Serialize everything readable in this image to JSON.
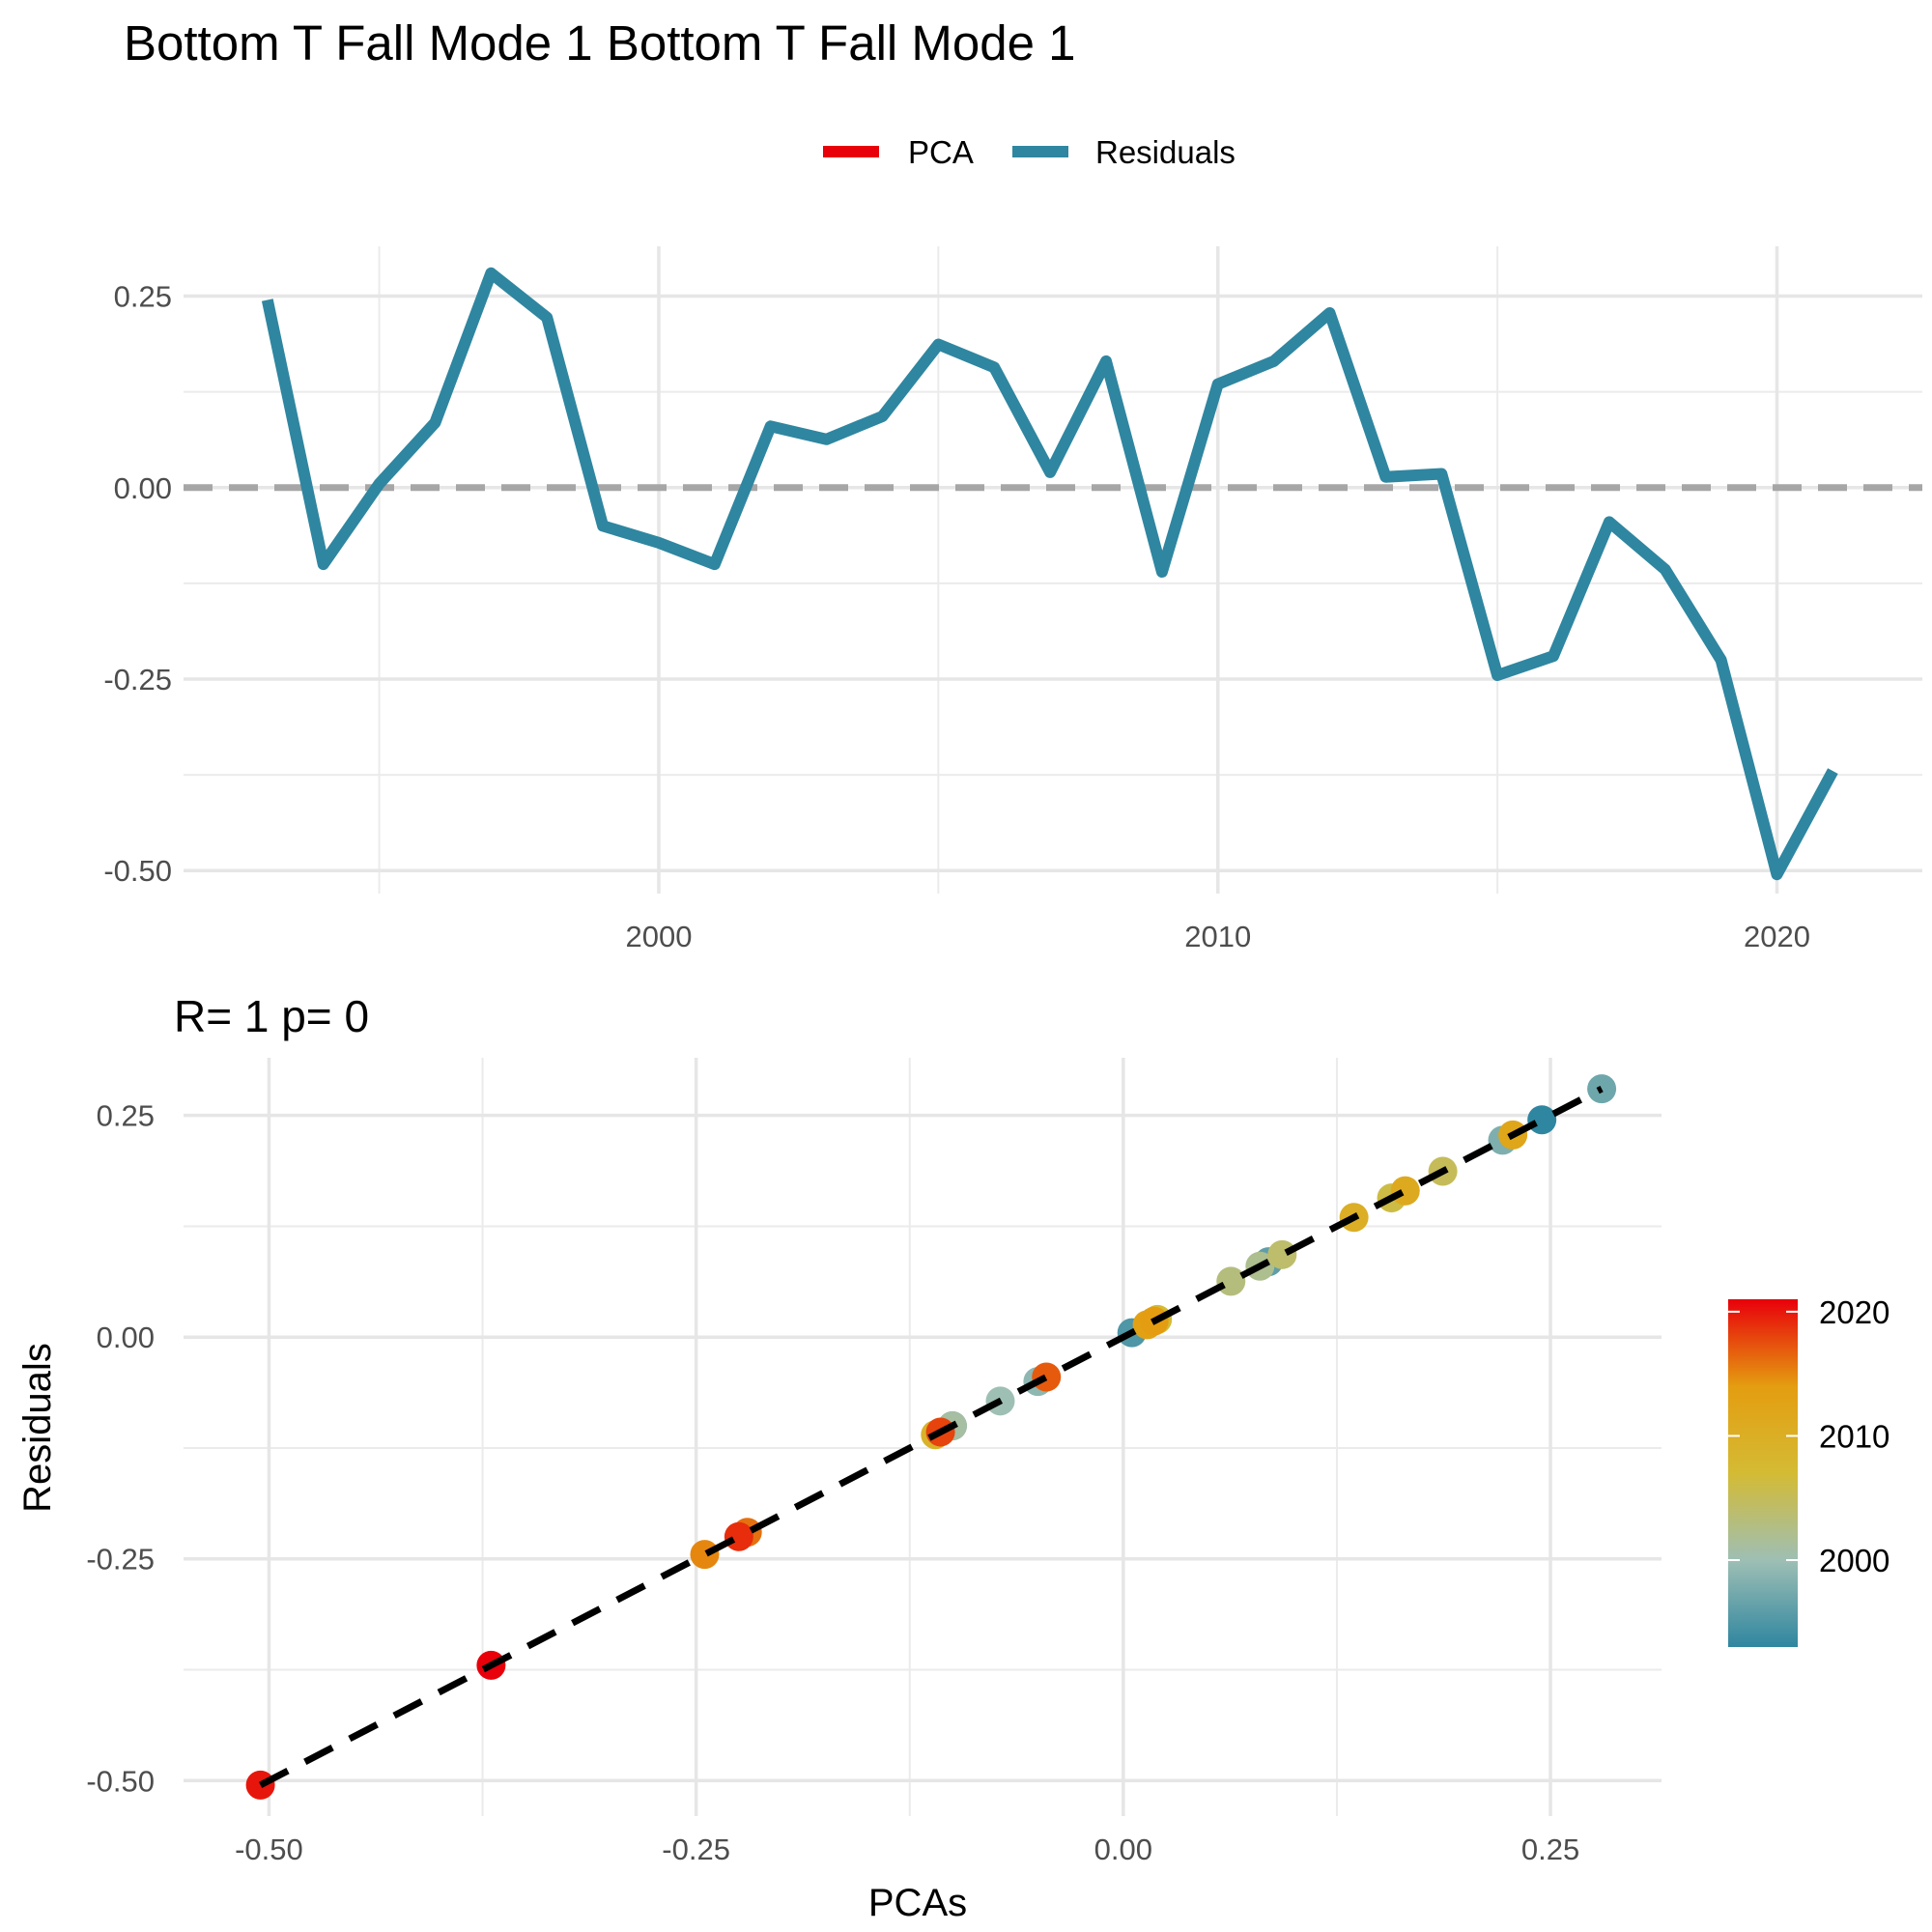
{
  "chart_data": [
    {
      "type": "line",
      "title": "Bottom T Fall Mode 1 Bottom T Fall Mode 1",
      "legend": {
        "position": "top",
        "entries": [
          {
            "name": "PCA",
            "color": "#e8000b"
          },
          {
            "name": "Residuals",
            "color": "#2f86a0"
          }
        ]
      },
      "x_ticks": [
        2000,
        2010,
        2020
      ],
      "y_ticks": [
        0.25,
        0.0,
        -0.25,
        -0.5
      ],
      "y_tick_labels": [
        "0.25",
        "0.00",
        "-0.25",
        "-0.50"
      ],
      "xlim": [
        1991.5,
        2022.6
      ],
      "ylim": [
        -0.53,
        0.315
      ],
      "zero_line": {
        "y": 0,
        "style": "dashed",
        "color": "#a6a6a6"
      },
      "grid": true,
      "series": [
        {
          "name": "Residuals",
          "color": "#2f86a0",
          "x": [
            1993,
            1994,
            1995,
            1996,
            1997,
            1998,
            1999,
            2000,
            2001,
            2002,
            2003,
            2004,
            2005,
            2006,
            2007,
            2008,
            2009,
            2010,
            2011,
            2012,
            2013,
            2014,
            2015,
            2016,
            2017,
            2018,
            2019,
            2020,
            2021
          ],
          "values": [
            0.245,
            -0.1,
            0.005,
            0.085,
            0.28,
            0.222,
            -0.05,
            -0.072,
            -0.1,
            0.08,
            0.063,
            0.093,
            0.187,
            0.157,
            0.02,
            0.165,
            -0.11,
            0.135,
            0.165,
            0.228,
            0.014,
            0.018,
            -0.245,
            -0.22,
            -0.045,
            -0.107,
            -0.225,
            -0.505,
            -0.37
          ]
        }
      ]
    },
    {
      "type": "scatter",
      "title": "R= 1  p= 0",
      "xlabel": "PCAs",
      "ylabel": "Residuals",
      "x_ticks": [
        -0.5,
        -0.25,
        0.0,
        0.25
      ],
      "x_tick_labels": [
        "-0.50",
        "-0.25",
        "0.00",
        "0.25"
      ],
      "y_ticks": [
        0.25,
        0.0,
        -0.25,
        -0.5
      ],
      "y_tick_labels": [
        "0.25",
        "0.00",
        "-0.25",
        "-0.50"
      ],
      "xlim": [
        -0.55,
        0.315
      ],
      "ylim": [
        -0.54,
        0.315
      ],
      "grid": true,
      "fit_line": {
        "style": "dashed",
        "color": "#000000",
        "x": [
          -0.505,
          0.28
        ],
        "y": [
          -0.505,
          0.28
        ]
      },
      "colorbar": {
        "ticks": [
          2020,
          2010,
          2000
        ],
        "range": [
          1993,
          2021
        ],
        "stops": [
          "#2f86a0",
          "#9ebfb4",
          "#d4bb34",
          "#e49d10",
          "#e8000b"
        ]
      },
      "points": {
        "year": [
          1993,
          1994,
          1995,
          1996,
          1997,
          1998,
          1999,
          2000,
          2001,
          2002,
          2003,
          2004,
          2005,
          2006,
          2007,
          2008,
          2009,
          2010,
          2011,
          2012,
          2013,
          2014,
          2015,
          2016,
          2017,
          2018,
          2019,
          2020,
          2021
        ],
        "x": [
          0.245,
          -0.1,
          0.005,
          0.085,
          0.28,
          0.222,
          -0.05,
          -0.072,
          -0.1,
          0.08,
          0.063,
          0.093,
          0.187,
          0.157,
          0.02,
          0.165,
          -0.11,
          0.135,
          0.165,
          0.228,
          0.014,
          0.018,
          -0.245,
          -0.22,
          -0.045,
          -0.107,
          -0.225,
          -0.505,
          -0.37
        ],
        "y": [
          0.245,
          -0.1,
          0.005,
          0.085,
          0.28,
          0.222,
          -0.05,
          -0.072,
          -0.1,
          0.08,
          0.063,
          0.093,
          0.187,
          0.157,
          0.02,
          0.165,
          -0.11,
          0.135,
          0.165,
          0.228,
          0.014,
          0.018,
          -0.245,
          -0.22,
          -0.045,
          -0.107,
          -0.225,
          -0.505,
          -0.37
        ]
      }
    }
  ]
}
